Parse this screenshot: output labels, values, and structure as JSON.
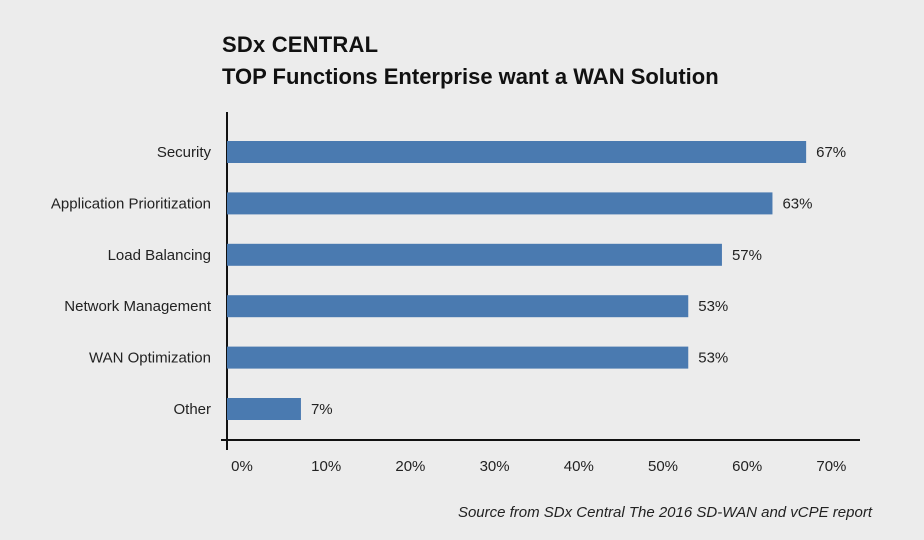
{
  "header": {
    "title": "SDx CENTRAL",
    "subtitle": "TOP Functions Enterprise want a WAN Solution"
  },
  "footer": {
    "source": "Source from SDx Central The 2016 SD-WAN and vCPE report"
  },
  "chart_data": {
    "type": "bar",
    "orientation": "horizontal",
    "categories": [
      "Security",
      "Application Prioritization",
      "Load Balancing",
      "Network Management",
      "WAN Optimization",
      "Other"
    ],
    "values": [
      67,
      63,
      57,
      53,
      53,
      7
    ],
    "data_labels": [
      "67%",
      "63%",
      "57%",
      "53%",
      "53%",
      "7%"
    ],
    "xlim": [
      0,
      70
    ],
    "x_ticks": [
      0,
      10,
      20,
      30,
      40,
      50,
      60,
      70
    ],
    "x_tick_labels": [
      "0%",
      "10%",
      "20%",
      "30%",
      "40%",
      "50%",
      "60%",
      "70%"
    ],
    "bar_color": "#4a7ab0",
    "grid": false,
    "legend": "none"
  }
}
